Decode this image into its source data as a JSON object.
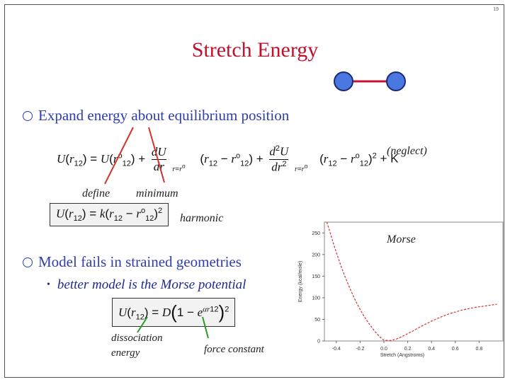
{
  "slide": {
    "number": "19",
    "title": "Stretch Energy",
    "bullets": [
      "Expand energy about equilibrium position",
      "Model fails in strained geometries"
    ],
    "sub_bullet": "better model is the Morse potential",
    "annotations": {
      "neglect": "(neglect)",
      "define": "define",
      "minimum": "minimum",
      "harmonic": "harmonic",
      "morse": "Morse",
      "dissociation": "dissociation",
      "energy": "energy",
      "force_constant": "force constant"
    },
    "equations": {
      "taylor_lhs": "U(r12) = U(r°12) +",
      "taylor_tail": "+ K",
      "harmonic": "U(r12) = k(r12 − r°12)²",
      "morse": "U(r12) = D(1 − e^αr12)²"
    }
  },
  "colors": {
    "title": "#c0102c",
    "bullet": "#2f3ea8",
    "atom": "#4a78e0",
    "bond": "#cc1133",
    "arrow": "#d0342c",
    "curve": "#d0342c",
    "pointer": "#2a9a2a"
  },
  "chart_data": {
    "type": "line",
    "title": "",
    "xlabel": "Stretch (Angstroms)",
    "ylabel": "Energy (kcal/mole)",
    "xlim": [
      -0.5,
      1.0
    ],
    "ylim": [
      0,
      275
    ],
    "x_ticks": [
      -0.4,
      -0.2,
      0.0,
      0.2,
      0.4,
      0.6,
      0.8
    ],
    "x_tick_labels": [
      "-0.4",
      "-0.2",
      "0.0",
      "0.2",
      "0.4",
      "0.6",
      "0.8"
    ],
    "y_ticks": [
      0,
      50,
      100,
      150,
      200,
      250
    ],
    "y_tick_labels": [
      "0",
      "50",
      "100",
      "150",
      "200",
      "250"
    ],
    "series": [
      {
        "x": [
          -0.48,
          -0.45,
          -0.42,
          -0.39,
          -0.36,
          -0.33,
          -0.3,
          -0.27,
          -0.24,
          -0.21,
          -0.18,
          -0.15,
          -0.12,
          -0.09,
          -0.06,
          -0.03,
          0.0,
          0.05,
          0.1,
          0.15,
          0.2,
          0.25,
          0.3,
          0.35,
          0.4,
          0.45,
          0.5,
          0.55,
          0.6,
          0.65,
          0.7,
          0.75,
          0.8,
          0.85,
          0.9,
          0.95
        ],
        "y": [
          278,
          249,
          222,
          197,
          173,
          151,
          131,
          112,
          94,
          78,
          63,
          50,
          38,
          27,
          17,
          8,
          2,
          1,
          4,
          10,
          17,
          24,
          32,
          39,
          46,
          52,
          58,
          63,
          67,
          71,
          74,
          77,
          79,
          81,
          83,
          85
        ]
      }
    ]
  }
}
